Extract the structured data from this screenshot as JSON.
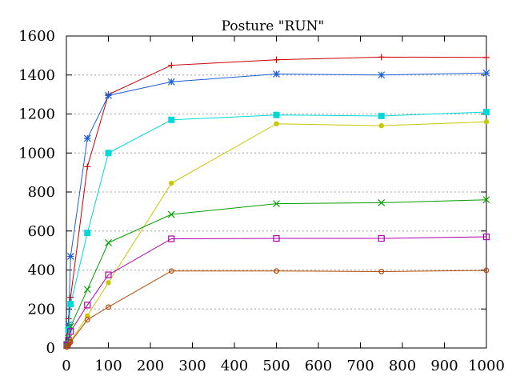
{
  "chart_data": {
    "type": "line",
    "title": "Posture \"RUN\"",
    "xlim": [
      0,
      1000
    ],
    "ylim": [
      0,
      1600
    ],
    "xticks": [
      0,
      100,
      200,
      300,
      400,
      500,
      600,
      700,
      800,
      900,
      1000
    ],
    "yticks": [
      0,
      200,
      400,
      600,
      800,
      1000,
      1200,
      1400,
      1600
    ],
    "grid": "horizontal dotted",
    "series": [
      {
        "color": "#cc0000",
        "marker": "plus",
        "x": [
          1,
          5,
          10,
          50,
          100,
          250,
          500,
          750,
          1000
        ],
        "y": [
          15,
          150,
          260,
          930,
          1300,
          1450,
          1478,
          1492,
          1490
        ]
      },
      {
        "color": "#1f5fd6",
        "marker": "star",
        "x": [
          1,
          5,
          10,
          50,
          100,
          250,
          500,
          750,
          1000
        ],
        "y": [
          18,
          120,
          470,
          1075,
          1295,
          1365,
          1405,
          1400,
          1410
        ]
      },
      {
        "color": "#00d8d8",
        "marker": "filled-square",
        "x": [
          1,
          5,
          10,
          50,
          100,
          250,
          500,
          750,
          1000
        ],
        "y": [
          20,
          95,
          225,
          590,
          1000,
          1170,
          1195,
          1190,
          1210
        ]
      },
      {
        "color": "#c8c800",
        "marker": "filled-circle",
        "x": [
          1,
          5,
          10,
          50,
          100,
          250,
          500,
          750,
          1000
        ],
        "y": [
          5,
          15,
          35,
          165,
          335,
          845,
          1150,
          1140,
          1160
        ]
      },
      {
        "color": "#00a000",
        "marker": "x",
        "x": [
          1,
          5,
          10,
          50,
          100,
          250,
          500,
          750,
          1000
        ],
        "y": [
          12,
          50,
          110,
          300,
          540,
          685,
          740,
          745,
          760
        ]
      },
      {
        "color": "#b000b0",
        "marker": "open-square",
        "x": [
          1,
          5,
          10,
          50,
          100,
          250,
          500,
          750,
          1000
        ],
        "y": [
          15,
          40,
          85,
          220,
          375,
          560,
          562,
          562,
          570
        ]
      },
      {
        "color": "#b34700",
        "marker": "open-circle",
        "x": [
          1,
          5,
          10,
          50,
          100,
          250,
          500,
          750,
          1000
        ],
        "y": [
          5,
          15,
          30,
          145,
          210,
          395,
          395,
          392,
          398
        ]
      }
    ]
  }
}
